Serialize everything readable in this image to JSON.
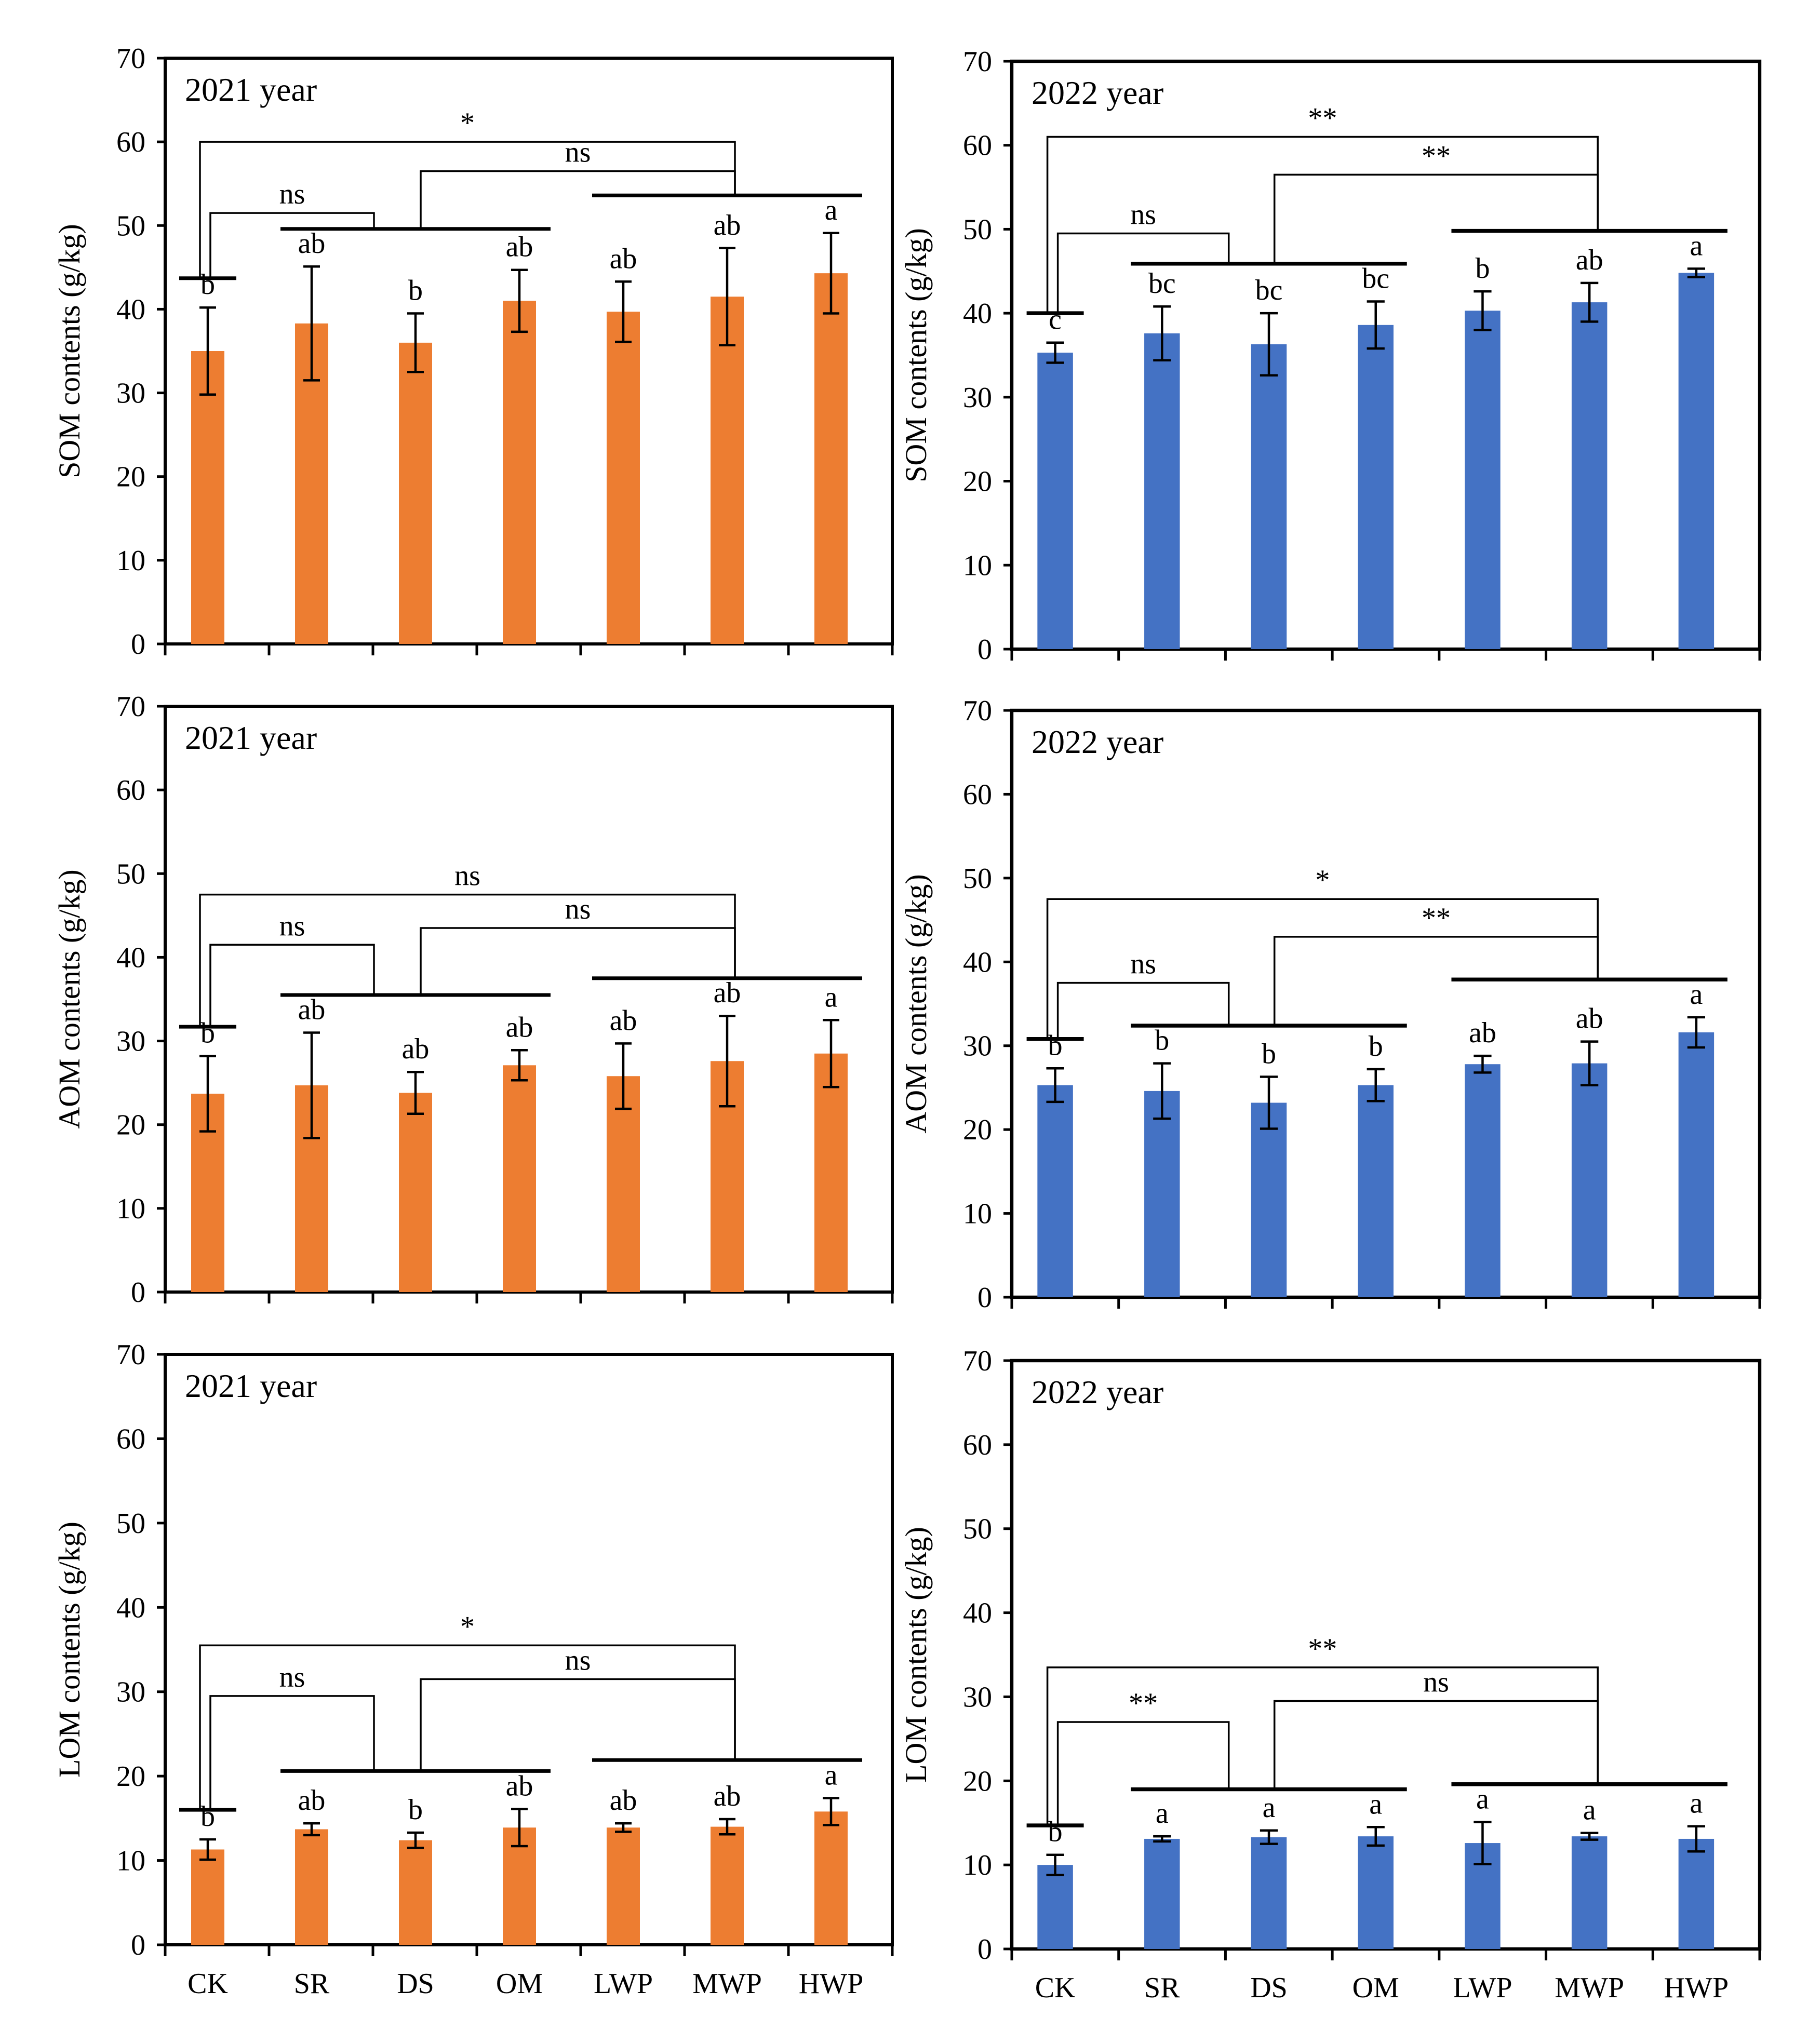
{
  "figure": {
    "categories": [
      "CK",
      "SR",
      "DS",
      "OM",
      "LWP",
      "MWP",
      "HWP"
    ],
    "yticks": [
      "0",
      "10",
      "20",
      "30",
      "40",
      "50",
      "60",
      "70"
    ],
    "colors": {
      "2021": "#ED7D31",
      "2022": "#4472C4"
    }
  },
  "chart_data": [
    {
      "type": "bar",
      "panel": "top-left",
      "title": "2021 year",
      "ylabel": "SOM contents (g/kg)",
      "ylim": [
        0,
        70
      ],
      "color": "#ED7D31",
      "categories": [
        "CK",
        "SR",
        "DS",
        "OM",
        "LWP",
        "MWP",
        "HWP"
      ],
      "values": [
        35,
        38.3,
        36,
        41,
        39.7,
        41.5,
        44.3
      ],
      "errors": [
        5.2,
        6.8,
        3.5,
        3.7,
        3.6,
        5.8,
        4.8
      ],
      "letters": [
        "b",
        "ab",
        "b",
        "ab",
        "ab",
        "ab",
        "a"
      ],
      "comparisons": [
        {
          "label": "*",
          "from": "CK",
          "to": "LWP–HWP",
          "level": 60
        },
        {
          "label": "ns",
          "from": "CK",
          "to": "SR–OM",
          "level": 51.5
        },
        {
          "label": "ns",
          "from": "SR–OM",
          "to": "LWP–HWP",
          "level": 56.5
        }
      ]
    },
    {
      "type": "bar",
      "panel": "top-right",
      "title": "2022 year",
      "ylabel": "SOM contents (g/kg)",
      "ylim": [
        0,
        70
      ],
      "color": "#4472C4",
      "categories": [
        "CK",
        "SR",
        "DS",
        "OM",
        "LWP",
        "MWP",
        "HWP"
      ],
      "values": [
        35.3,
        37.6,
        36.3,
        38.6,
        40.3,
        41.3,
        44.8
      ],
      "errors": [
        1.2,
        3.2,
        3.7,
        2.8,
        2.3,
        2.3,
        0.5
      ],
      "letters": [
        "c",
        "bc",
        "bc",
        "bc",
        "b",
        "ab",
        "a"
      ],
      "comparisons": [
        {
          "label": "**",
          "from": "CK",
          "to": "LWP–HWP",
          "level": 61
        },
        {
          "label": "ns",
          "from": "CK",
          "to": "SR–OM",
          "level": 49.5
        },
        {
          "label": "**",
          "from": "SR–OM",
          "to": "LWP–HWP",
          "level": 56.5
        }
      ]
    },
    {
      "type": "bar",
      "panel": "middle-left",
      "title": "2021 year",
      "ylabel": "AOM contents (g/kg)",
      "ylim": [
        0,
        70
      ],
      "color": "#ED7D31",
      "categories": [
        "CK",
        "SR",
        "DS",
        "OM",
        "LWP",
        "MWP",
        "HWP"
      ],
      "values": [
        23.7,
        24.7,
        23.8,
        27.1,
        25.8,
        27.6,
        28.5
      ],
      "errors": [
        4.5,
        6.3,
        2.5,
        1.8,
        3.9,
        5.4,
        4
      ],
      "letters": [
        "b",
        "ab",
        "ab",
        "ab",
        "ab",
        "ab",
        "a"
      ],
      "comparisons": [
        {
          "label": "ns",
          "from": "CK",
          "to": "LWP–HWP",
          "level": 47.5
        },
        {
          "label": "ns",
          "from": "CK",
          "to": "SR–OM",
          "level": 41.5
        },
        {
          "label": "ns",
          "from": "SR–OM",
          "to": "LWP–HWP",
          "level": 43.5
        }
      ]
    },
    {
      "type": "bar",
      "panel": "middle-right",
      "title": "2022 year",
      "ylabel": "AOM contents (g/kg)",
      "ylim": [
        0,
        70
      ],
      "color": "#4472C4",
      "categories": [
        "CK",
        "SR",
        "DS",
        "OM",
        "LWP",
        "MWP",
        "HWP"
      ],
      "values": [
        25.3,
        24.6,
        23.2,
        25.3,
        27.8,
        27.9,
        31.6
      ],
      "errors": [
        2,
        3.3,
        3.1,
        1.9,
        1,
        2.6,
        1.8
      ],
      "letters": [
        "b",
        "b",
        "b",
        "b",
        "ab",
        "ab",
        "a"
      ],
      "comparisons": [
        {
          "label": "*",
          "from": "CK",
          "to": "LWP–HWP",
          "level": 47.5
        },
        {
          "label": "ns",
          "from": "CK",
          "to": "SR–OM",
          "level": 37.5
        },
        {
          "label": "**",
          "from": "SR–OM",
          "to": "LWP–HWP",
          "level": 43
        }
      ]
    },
    {
      "type": "bar",
      "panel": "bottom-left",
      "title": "2021 year",
      "ylabel": "LOM contents (g/kg)",
      "ylim": [
        0,
        70
      ],
      "color": "#ED7D31",
      "categories": [
        "CK",
        "SR",
        "DS",
        "OM",
        "LWP",
        "MWP",
        "HWP"
      ],
      "values": [
        11.3,
        13.7,
        12.4,
        13.9,
        13.9,
        14,
        15.8
      ],
      "errors": [
        1.2,
        0.7,
        0.9,
        2.2,
        0.5,
        0.9,
        1.6
      ],
      "letters": [
        "b",
        "ab",
        "b",
        "ab",
        "ab",
        "ab",
        "a"
      ],
      "comparisons": [
        {
          "label": "*",
          "from": "CK",
          "to": "LWP–HWP",
          "level": 35.5
        },
        {
          "label": "ns",
          "from": "CK",
          "to": "SR–OM",
          "level": 29.5
        },
        {
          "label": "ns",
          "from": "SR–OM",
          "to": "LWP–HWP",
          "level": 31.5
        }
      ]
    },
    {
      "type": "bar",
      "panel": "bottom-right",
      "title": "2022 year",
      "ylabel": "LOM contents (g/kg)",
      "ylim": [
        0,
        70
      ],
      "color": "#4472C4",
      "categories": [
        "CK",
        "SR",
        "DS",
        "OM",
        "LWP",
        "MWP",
        "HWP"
      ],
      "values": [
        10,
        13.1,
        13.3,
        13.4,
        12.6,
        13.4,
        13.1
      ],
      "errors": [
        1.2,
        0.3,
        0.8,
        1.1,
        2.5,
        0.4,
        1.5
      ],
      "letters": [
        "b",
        "a",
        "a",
        "a",
        "a",
        "a",
        "a"
      ],
      "comparisons": [
        {
          "label": "**",
          "from": "CK",
          "to": "LWP–HWP",
          "level": 33.5
        },
        {
          "label": "**",
          "from": "CK",
          "to": "SR–OM",
          "level": 27
        },
        {
          "label": "ns",
          "from": "SR–OM",
          "to": "LWP–HWP",
          "level": 29.5
        }
      ]
    }
  ]
}
